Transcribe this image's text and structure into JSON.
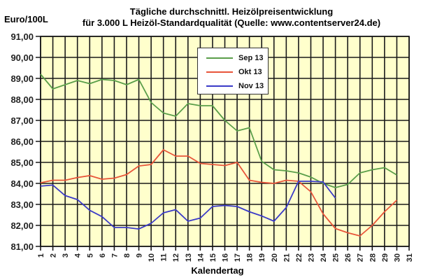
{
  "header": {
    "y_unit": "Euro/100L",
    "title_line1": "Tägliche durchschnittl. Heizölpreisentwicklung",
    "title_line2": "für 3.000 L Heizöl-Standardqualität (Quelle: www.contentserver24.de)"
  },
  "axes": {
    "xlabel": "Kalendertag"
  },
  "legend": [
    {
      "label": "Sep 13",
      "color": "#5a9e4a"
    },
    {
      "label": "Okt 13",
      "color": "#e8553a"
    },
    {
      "label": "Nov 13",
      "color": "#3a3ac8"
    }
  ],
  "colors": {
    "plot_background": "#ffffcc",
    "grid": "#1a1a1a"
  },
  "chart_data": {
    "type": "line",
    "title": "Tägliche durchschnittl. Heizölpreisentwicklung für 3.000 L Heizöl-Standardqualität (Quelle: www.contentserver24.de)",
    "xlabel": "Kalendertag",
    "ylabel": "Euro/100L",
    "ylim": [
      81,
      91
    ],
    "xlim": [
      1,
      31
    ],
    "grid": true,
    "legend_position": "inside-top-center",
    "y_ticks": [
      "81,00",
      "82,00",
      "83,00",
      "84,00",
      "85,00",
      "86,00",
      "87,00",
      "88,00",
      "89,00",
      "90,00",
      "91,00"
    ],
    "x": [
      1,
      2,
      3,
      4,
      5,
      6,
      7,
      8,
      9,
      10,
      11,
      12,
      13,
      14,
      15,
      16,
      17,
      18,
      19,
      20,
      21,
      22,
      23,
      24,
      25,
      26,
      27,
      28,
      29,
      30,
      31
    ],
    "series": [
      {
        "name": "Sep 13",
        "color": "#5a9e4a",
        "values": [
          89.2,
          88.5,
          88.7,
          88.9,
          88.75,
          88.95,
          88.9,
          88.7,
          88.95,
          87.85,
          87.35,
          87.2,
          87.8,
          87.7,
          87.7,
          87.0,
          86.5,
          86.65,
          85.05,
          84.65,
          84.6,
          84.5,
          84.3,
          84.0,
          83.8,
          83.95,
          84.5,
          84.65,
          84.75,
          84.4
        ]
      },
      {
        "name": "Okt 13",
        "color": "#e8553a",
        "values": [
          84.03,
          84.15,
          84.15,
          84.28,
          84.37,
          84.2,
          84.25,
          84.42,
          84.83,
          84.9,
          85.6,
          85.3,
          85.3,
          84.95,
          84.9,
          84.85,
          85.0,
          84.15,
          84.05,
          84.0,
          84.15,
          84.1,
          83.6,
          82.55,
          81.85,
          81.65,
          81.5,
          82.0,
          82.65,
          83.2
        ]
      },
      {
        "name": "Nov 13",
        "color": "#3a3ac8",
        "values": [
          83.87,
          83.92,
          83.42,
          83.23,
          82.72,
          82.42,
          81.9,
          81.9,
          81.83,
          82.1,
          82.6,
          82.75,
          82.2,
          82.35,
          82.9,
          82.95,
          82.9,
          82.65,
          82.45,
          82.2,
          82.85,
          84.1,
          84.1,
          84.07,
          83.3
        ]
      }
    ]
  }
}
